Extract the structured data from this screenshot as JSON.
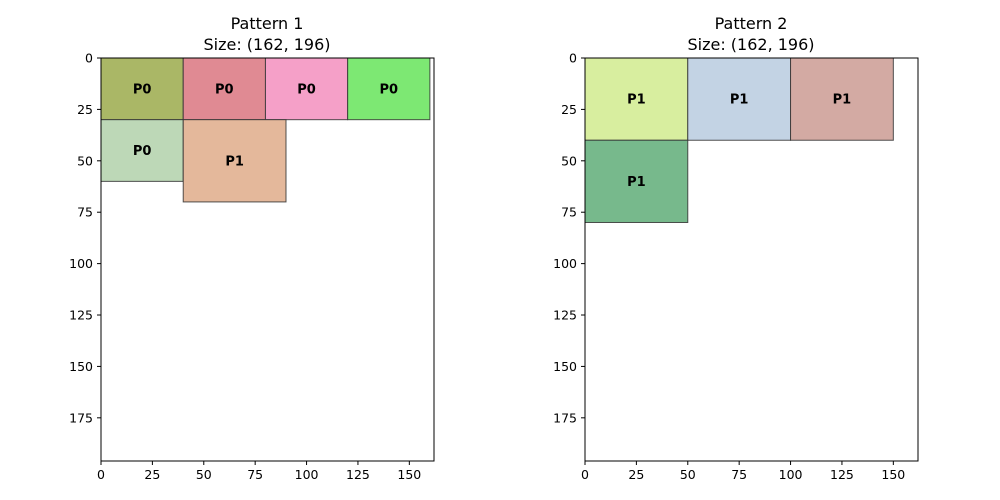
{
  "chart_data": [
    {
      "type": "packing",
      "title": "Pattern 1",
      "subtitle": "Size: (162, 196)",
      "xlim": [
        0,
        162
      ],
      "ylim": [
        196,
        0
      ],
      "x_ticks": [
        0,
        25,
        50,
        75,
        100,
        125,
        150
      ],
      "y_ticks": [
        0,
        25,
        50,
        75,
        100,
        125,
        150,
        175
      ],
      "rects": [
        {
          "label": "P0",
          "x": 0,
          "y": 0,
          "w": 40,
          "h": 30,
          "color": "#aab766"
        },
        {
          "label": "P0",
          "x": 40,
          "y": 0,
          "w": 40,
          "h": 30,
          "color": "#e08a93"
        },
        {
          "label": "P0",
          "x": 80,
          "y": 0,
          "w": 40,
          "h": 30,
          "color": "#f5a0c8"
        },
        {
          "label": "P0",
          "x": 120,
          "y": 0,
          "w": 40,
          "h": 30,
          "color": "#7de873"
        },
        {
          "label": "P0",
          "x": 0,
          "y": 30,
          "w": 40,
          "h": 30,
          "color": "#bdd8b7"
        },
        {
          "label": "P1",
          "x": 40,
          "y": 30,
          "w": 50,
          "h": 40,
          "color": "#e4b89b"
        }
      ]
    },
    {
      "type": "packing",
      "title": "Pattern 2",
      "subtitle": "Size: (162, 196)",
      "xlim": [
        0,
        162
      ],
      "ylim": [
        196,
        0
      ],
      "x_ticks": [
        0,
        25,
        50,
        75,
        100,
        125,
        150
      ],
      "y_ticks": [
        0,
        25,
        50,
        75,
        100,
        125,
        150,
        175
      ],
      "rects": [
        {
          "label": "P1",
          "x": 0,
          "y": 0,
          "w": 50,
          "h": 40,
          "color": "#d8ee9f"
        },
        {
          "label": "P1",
          "x": 50,
          "y": 0,
          "w": 50,
          "h": 40,
          "color": "#c3d3e4"
        },
        {
          "label": "P1",
          "x": 100,
          "y": 0,
          "w": 50,
          "h": 40,
          "color": "#d3aaa3"
        },
        {
          "label": "P1",
          "x": 0,
          "y": 40,
          "w": 50,
          "h": 40,
          "color": "#77b98c"
        }
      ]
    }
  ]
}
